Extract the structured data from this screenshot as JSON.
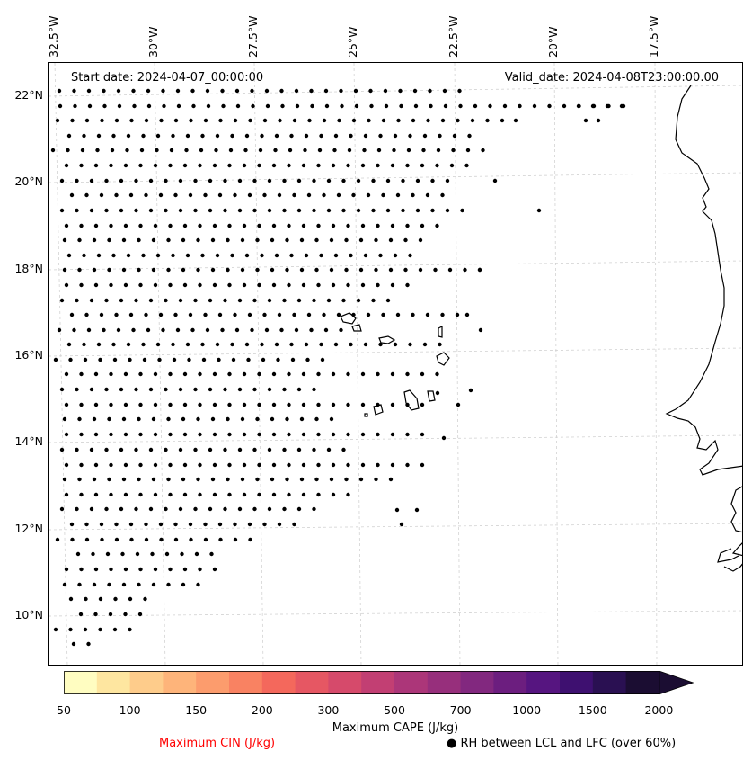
{
  "map": {
    "start_date": "Start date: 2024-04-07_00:00:00",
    "valid_date": "Valid_date: 2024-04-08T23:00:00.00",
    "lon_labels": [
      "32.5°W",
      "30°W",
      "27.5°W",
      "25°W",
      "22.5°W",
      "20°W",
      "17.5°W"
    ],
    "lat_labels": [
      "22°N",
      "20°N",
      "18°N",
      "16°N",
      "14°N",
      "12°N",
      "10°N"
    ],
    "dot_color": "#000000",
    "coast_color": "#000000",
    "grid_color": "#cccccc"
  },
  "colorbar": {
    "label": "Maximum CAPE (J/kg)",
    "ticks": [
      "50",
      "100",
      "150",
      "200",
      "300",
      "500",
      "700",
      "1000",
      "1500",
      "2000"
    ],
    "colors": [
      "#fffdc1",
      "#fee6a0",
      "#fecc8b",
      "#feb47a",
      "#fc9c6d",
      "#f98262",
      "#f4685c",
      "#e65763",
      "#d64a6b",
      "#c23f73",
      "#ac3679",
      "#972f7c",
      "#82287f",
      "#6c1e7f",
      "#561580",
      "#3e1070",
      "#2a1052",
      "#1b0d32"
    ],
    "extend": "max"
  },
  "legend": {
    "cin_label": "Maximum CIN (J/kg)",
    "cin_color": "#ff0000",
    "rh_label": "● RH between LCL and LFC (over 60%)"
  }
}
